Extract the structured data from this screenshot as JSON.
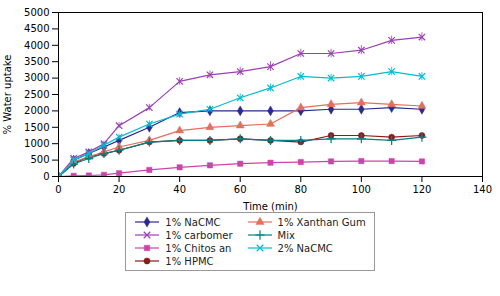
{
  "chart_data": {
    "type": "line",
    "xlabel": "Time (min)",
    "ylabel": "% Water uptake",
    "x": [
      0,
      5,
      10,
      15,
      20,
      30,
      40,
      50,
      60,
      70,
      80,
      90,
      100,
      110,
      120
    ],
    "series": [
      {
        "name": "1% NaCMC",
        "color": "#2b2b8c",
        "marker": "diamond",
        "values": [
          0,
          500,
          700,
          900,
          1100,
          1500,
          1950,
          2000,
          2000,
          2000,
          2000,
          2050,
          2050,
          2100,
          2050
        ],
        "errors": [
          0,
          50,
          60,
          70,
          80,
          80,
          80,
          80,
          80,
          80,
          80,
          80,
          80,
          80,
          80
        ]
      },
      {
        "name": "1% carbomer",
        "color": "#9b3fb5",
        "marker": "x",
        "values": [
          0,
          550,
          750,
          1000,
          1550,
          2100,
          2900,
          3100,
          3200,
          3350,
          3750,
          3750,
          3850,
          4150,
          4250
        ],
        "errors": [
          0,
          60,
          70,
          80,
          90,
          100,
          120,
          120,
          130,
          150,
          130,
          130,
          140,
          130,
          130
        ]
      },
      {
        "name": "1% Chitos an",
        "color": "#cc44aa",
        "marker": "square",
        "values": [
          0,
          20,
          30,
          50,
          100,
          200,
          280,
          340,
          390,
          420,
          440,
          460,
          470,
          470,
          460
        ],
        "errors": [
          0,
          10,
          10,
          15,
          20,
          25,
          25,
          30,
          30,
          30,
          30,
          30,
          30,
          30,
          30
        ]
      },
      {
        "name": "1% HPMC",
        "color": "#8b1a1a",
        "marker": "circle",
        "values": [
          0,
          400,
          600,
          700,
          800,
          1050,
          1100,
          1100,
          1150,
          1100,
          1050,
          1250,
          1250,
          1200,
          1250
        ],
        "errors": [
          0,
          50,
          60,
          60,
          60,
          60,
          60,
          60,
          60,
          60,
          60,
          70,
          70,
          70,
          70
        ]
      },
      {
        "name": "1% Xanthan Gum",
        "color": "#e07060",
        "marker": "triangle",
        "values": [
          0,
          450,
          600,
          750,
          900,
          1100,
          1400,
          1500,
          1550,
          1600,
          2100,
          2200,
          2250,
          2200,
          2150
        ],
        "errors": [
          0,
          50,
          60,
          60,
          70,
          70,
          80,
          80,
          80,
          90,
          100,
          100,
          100,
          100,
          100
        ]
      },
      {
        "name": "Mix",
        "color": "#008080",
        "marker": "plus",
        "values": [
          0,
          380,
          550,
          700,
          800,
          1050,
          1100,
          1100,
          1150,
          1100,
          1100,
          1150,
          1150,
          1100,
          1200
        ],
        "errors": [
          0,
          40,
          50,
          60,
          60,
          60,
          60,
          60,
          60,
          60,
          60,
          60,
          60,
          60,
          60
        ]
      },
      {
        "name": "2% NaCMC",
        "color": "#00bcd4",
        "marker": "x",
        "values": [
          0,
          500,
          700,
          950,
          1200,
          1600,
          1900,
          2050,
          2400,
          2700,
          3050,
          3000,
          3050,
          3200,
          3050
        ],
        "errors": [
          0,
          60,
          70,
          80,
          90,
          100,
          100,
          110,
          120,
          120,
          130,
          120,
          120,
          130,
          120
        ]
      }
    ],
    "xlim": [
      0,
      140
    ],
    "ylim": [
      0,
      5000
    ],
    "xticks": [
      0,
      20,
      40,
      60,
      80,
      100,
      120,
      140
    ],
    "yticks": [
      0,
      500,
      1000,
      1500,
      2000,
      2500,
      3000,
      3500,
      4000,
      4500,
      5000
    ],
    "legend": "bottom"
  }
}
